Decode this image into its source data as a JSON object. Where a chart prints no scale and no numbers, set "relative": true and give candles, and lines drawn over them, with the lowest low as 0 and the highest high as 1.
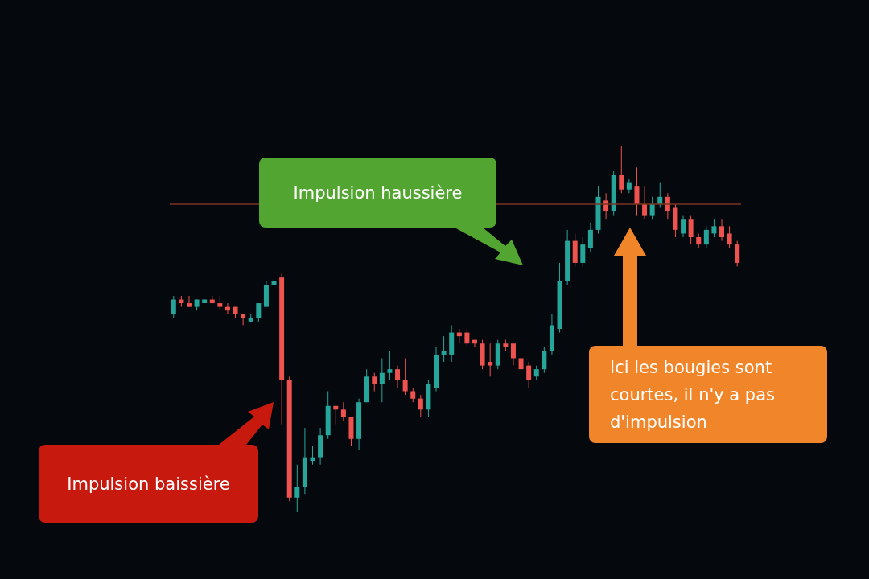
{
  "chart_data": {
    "type": "candlestick",
    "relative": true,
    "categories": [
      null,
      null,
      null,
      null,
      null,
      null,
      null,
      null,
      null,
      null,
      null,
      null,
      null,
      null,
      null,
      null,
      null,
      null,
      null,
      null,
      null,
      null,
      null,
      null,
      null,
      null,
      null,
      null,
      null,
      null,
      null,
      null,
      null,
      null,
      null,
      null,
      null,
      null,
      null,
      null,
      null,
      null,
      null,
      null,
      null,
      null,
      null,
      null,
      null,
      null,
      null,
      null,
      null,
      null,
      null,
      null,
      null,
      null,
      null,
      null,
      null,
      null,
      null,
      null,
      null,
      null,
      null,
      null,
      null,
      null,
      null,
      null,
      null,
      null
    ],
    "ohlc": [
      [
        0.54,
        0.59,
        0.53,
        0.58
      ],
      [
        0.58,
        0.59,
        0.56,
        0.57
      ],
      [
        0.57,
        0.59,
        0.56,
        0.56
      ],
      [
        0.56,
        0.58,
        0.55,
        0.58
      ],
      [
        0.57,
        0.58,
        0.57,
        0.58
      ],
      [
        0.58,
        0.59,
        0.57,
        0.57
      ],
      [
        0.57,
        0.59,
        0.55,
        0.56
      ],
      [
        0.56,
        0.57,
        0.54,
        0.55
      ],
      [
        0.56,
        0.56,
        0.53,
        0.54
      ],
      [
        0.54,
        0.54,
        0.51,
        0.53
      ],
      [
        0.52,
        0.54,
        0.52,
        0.53
      ],
      [
        0.53,
        0.57,
        0.52,
        0.57
      ],
      [
        0.56,
        0.63,
        0.56,
        0.62
      ],
      [
        0.62,
        0.68,
        0.61,
        0.63
      ],
      [
        0.64,
        0.65,
        0.24,
        0.36
      ],
      [
        0.36,
        0.37,
        0.03,
        0.04
      ],
      [
        0.04,
        0.13,
        0,
        0.07
      ],
      [
        0.07,
        0.23,
        0.05,
        0.15
      ],
      [
        0.14,
        0.18,
        0.13,
        0.15
      ],
      [
        0.15,
        0.23,
        0.13,
        0.21
      ],
      [
        0.21,
        0.33,
        0.2,
        0.29
      ],
      [
        0.29,
        0.29,
        0.24,
        0.28
      ],
      [
        0.28,
        0.3,
        0.25,
        0.26
      ],
      [
        0.26,
        0.26,
        0.18,
        0.2
      ],
      [
        0.2,
        0.31,
        0.17,
        0.3
      ],
      [
        0.3,
        0.39,
        0.3,
        0.37
      ],
      [
        0.37,
        0.38,
        0.33,
        0.35
      ],
      [
        0.35,
        0.42,
        0.3,
        0.38
      ],
      [
        0.38,
        0.44,
        0.36,
        0.39
      ],
      [
        0.39,
        0.4,
        0.34,
        0.36
      ],
      [
        0.36,
        0.42,
        0.32,
        0.33
      ],
      [
        0.33,
        0.34,
        0.3,
        0.31
      ],
      [
        0.31,
        0.32,
        0.26,
        0.28
      ],
      [
        0.28,
        0.36,
        0.26,
        0.35
      ],
      [
        0.34,
        0.45,
        0.33,
        0.43
      ],
      [
        0.43,
        0.48,
        0.41,
        0.44
      ],
      [
        0.43,
        0.51,
        0.41,
        0.49
      ],
      [
        0.49,
        0.5,
        0.46,
        0.48
      ],
      [
        0.49,
        0.5,
        0.45,
        0.46
      ],
      [
        0.47,
        0.47,
        0.45,
        0.46
      ],
      [
        0.46,
        0.47,
        0.39,
        0.4
      ],
      [
        0.41,
        0.46,
        0.37,
        0.4
      ],
      [
        0.4,
        0.47,
        0.39,
        0.46
      ],
      [
        0.46,
        0.47,
        0.44,
        0.45
      ],
      [
        0.46,
        0.46,
        0.4,
        0.42
      ],
      [
        0.42,
        0.42,
        0.38,
        0.39
      ],
      [
        0.4,
        0.41,
        0.34,
        0.36
      ],
      [
        0.37,
        0.4,
        0.36,
        0.39
      ],
      [
        0.39,
        0.45,
        0.38,
        0.44
      ],
      [
        0.44,
        0.54,
        0.43,
        0.51
      ],
      [
        0.5,
        0.68,
        0.49,
        0.63
      ],
      [
        0.63,
        0.77,
        0.62,
        0.74
      ],
      [
        0.74,
        0.76,
        0.67,
        0.68
      ],
      [
        0.68,
        0.75,
        0.67,
        0.73
      ],
      [
        0.72,
        0.79,
        0.71,
        0.77
      ],
      [
        0.77,
        0.89,
        0.76,
        0.86
      ],
      [
        0.85,
        0.87,
        0.8,
        0.82
      ],
      [
        0.82,
        0.93,
        0.81,
        0.92
      ],
      [
        0.92,
        1,
        0.87,
        0.88
      ],
      [
        0.88,
        0.91,
        0.87,
        0.9
      ],
      [
        0.89,
        0.94,
        0.81,
        0.84
      ],
      [
        0.84,
        0.89,
        0.8,
        0.81
      ],
      [
        0.81,
        0.86,
        0.8,
        0.84
      ],
      [
        0.84,
        0.9,
        0.83,
        0.86
      ],
      [
        0.86,
        0.87,
        0.8,
        0.82
      ],
      [
        0.83,
        0.84,
        0.75,
        0.77
      ],
      [
        0.76,
        0.81,
        0.75,
        0.8
      ],
      [
        0.8,
        0.81,
        0.73,
        0.75
      ],
      [
        0.75,
        0.76,
        0.72,
        0.73
      ],
      [
        0.73,
        0.78,
        0.72,
        0.77
      ],
      [
        0.76,
        0.8,
        0.75,
        0.78
      ],
      [
        0.78,
        0.8,
        0.74,
        0.75
      ],
      [
        0.76,
        0.78,
        0.72,
        0.73
      ],
      [
        0.73,
        0.74,
        0.67,
        0.68
      ]
    ],
    "colors": [
      "#26a69a",
      "#ef5350",
      "#ef5350",
      "#26a69a",
      "#26a69a",
      "#ef5350",
      "#ef5350",
      "#ef5350",
      "#ef5350",
      "#ef5350",
      "#26a69a",
      "#26a69a",
      "#26a69a",
      "#26a69a",
      "#ef5350",
      "#ef5350",
      "#26a69a",
      "#26a69a",
      "#26a69a",
      "#26a69a",
      "#26a69a",
      "#ef5350",
      "#ef5350",
      "#ef5350",
      "#26a69a",
      "#26a69a",
      "#ef5350",
      "#26a69a",
      "#26a69a",
      "#ef5350",
      "#ef5350",
      "#ef5350",
      "#ef5350",
      "#26a69a",
      "#26a69a",
      "#26a69a",
      "#26a69a",
      "#ef5350",
      "#ef5350",
      "#ef5350",
      "#ef5350",
      "#ef5350",
      "#26a69a",
      "#ef5350",
      "#ef5350",
      "#ef5350",
      "#ef5350",
      "#26a69a",
      "#26a69a",
      "#26a69a",
      "#26a69a",
      "#26a69a",
      "#ef5350",
      "#26a69a",
      "#26a69a",
      "#26a69a",
      "#ef5350",
      "#26a69a",
      "#ef5350",
      "#26a69a",
      "#ef5350",
      "#ef5350",
      "#26a69a",
      "#26a69a",
      "#ef5350",
      "#ef5350",
      "#26a69a",
      "#ef5350",
      "#ef5350",
      "#26a69a",
      "#26a69a",
      "#ef5350",
      "#ef5350",
      "#ef5350"
    ],
    "ref_lines": [
      {
        "axis": "y",
        "value": 0.84,
        "color": "#7a3422"
      }
    ],
    "annotations": [
      "Impulsion haussière",
      "Ici les bougies sont courtes, il n'y a pas d'impulsion",
      "Impulsion baissière"
    ]
  }
}
